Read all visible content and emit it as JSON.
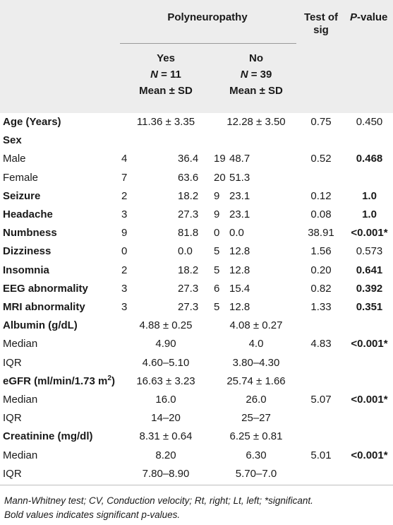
{
  "header": {
    "group_title": "Polyneuropathy",
    "test_of_sig_line1": "Test of",
    "test_of_sig_line2": "sig",
    "p_value_italic": "P",
    "p_value_rest": "-value",
    "yes_label": "Yes",
    "yes_n_italic": "N",
    "yes_n_rest": " = 11",
    "no_label": "No",
    "no_n_italic": "N",
    "no_n_rest": " = 39",
    "mean_sd": "Mean ± SD"
  },
  "rows": [
    {
      "label": "Age (Years)",
      "bold_label": true,
      "yes_combined": "11.36 ± 3.35",
      "no_combined": "12.28 ± 3.50",
      "test": "0.75",
      "p": "0.450",
      "p_bold": false
    },
    {
      "label": "Sex",
      "bold_label": true
    },
    {
      "label": "Male",
      "bold_label": false,
      "yes_n": "4",
      "yes_pct": "36.4",
      "no_n": "19",
      "no_pct": "48.7",
      "test": "0.52",
      "p": "0.468",
      "p_bold": true
    },
    {
      "label": "Female",
      "bold_label": false,
      "yes_n": "7",
      "yes_pct": "63.6",
      "no_n": "20",
      "no_pct": "51.3",
      "test": "",
      "p": "",
      "p_bold": false
    },
    {
      "label": "Seizure",
      "bold_label": true,
      "yes_n": "2",
      "yes_pct": "18.2",
      "no_n": "9",
      "no_pct": "23.1",
      "test": "0.12",
      "p": "1.0",
      "p_bold": true
    },
    {
      "label": "Headache",
      "bold_label": true,
      "yes_n": "3",
      "yes_pct": "27.3",
      "no_n": "9",
      "no_pct": "23.1",
      "test": "0.08",
      "p": "1.0",
      "p_bold": true
    },
    {
      "label": "Numbness",
      "bold_label": true,
      "yes_n": "9",
      "yes_pct": "81.8",
      "no_n": "0",
      "no_pct": "0.0",
      "test": "38.91",
      "p": "<0.001*",
      "p_bold": true
    },
    {
      "label": "Dizziness",
      "bold_label": true,
      "yes_n": "0",
      "yes_pct": "0.0",
      "no_n": "5",
      "no_pct": "12.8",
      "test": "1.56",
      "p": "0.573",
      "p_bold": false
    },
    {
      "label": "Insomnia",
      "bold_label": true,
      "yes_n": "2",
      "yes_pct": "18.2",
      "no_n": "5",
      "no_pct": "12.8",
      "test": "0.20",
      "p": "0.641",
      "p_bold": true
    },
    {
      "label": "EEG abnormality",
      "bold_label": true,
      "yes_n": "3",
      "yes_pct": "27.3",
      "no_n": "6",
      "no_pct": "15.4",
      "test": "0.82",
      "p": "0.392",
      "p_bold": true
    },
    {
      "label": "MRI abnormality",
      "bold_label": true,
      "yes_n": "3",
      "yes_pct": "27.3",
      "no_n": "5",
      "no_pct": "12.8",
      "test": "1.33",
      "p": "0.351",
      "p_bold": true
    },
    {
      "label": "Albumin (g/dL)",
      "bold_label": true,
      "yes_combined": "4.88 ± 0.25",
      "no_combined": "4.08 ± 0.27",
      "test": "",
      "p": "",
      "p_bold": false
    },
    {
      "label": "Median",
      "bold_label": false,
      "yes_combined": "4.90",
      "no_combined": "4.0",
      "test": "4.83",
      "p": "<0.001*",
      "p_bold": true
    },
    {
      "label": "IQR",
      "bold_label": false,
      "yes_combined": "4.60–5.10",
      "no_combined": "3.80–4.30",
      "test": "",
      "p": "",
      "p_bold": false
    },
    {
      "label": "eGFR (ml/min/1.73 m",
      "label_sup": "2",
      "label_tail": ")",
      "bold_label": true,
      "yes_combined": "16.63 ± 3.23",
      "no_combined": "25.74 ± 1.66",
      "test": "",
      "p": "",
      "p_bold": false
    },
    {
      "label": "Median",
      "bold_label": false,
      "yes_combined": "16.0",
      "no_combined": "26.0",
      "test": "5.07",
      "p": "<0.001*",
      "p_bold": true
    },
    {
      "label": "IQR",
      "bold_label": false,
      "yes_combined": "14–20",
      "no_combined": "25–27",
      "test": "",
      "p": "",
      "p_bold": false
    },
    {
      "label": "Creatinine (mg/dl)",
      "bold_label": true,
      "yes_combined": "8.31 ± 0.64",
      "no_combined": "6.25 ± 0.81",
      "test": "",
      "p": "",
      "p_bold": false
    },
    {
      "label": "Median",
      "bold_label": false,
      "yes_combined": "8.20",
      "no_combined": "6.30",
      "test": "5.01",
      "p": "<0.001*",
      "p_bold": true
    },
    {
      "label": "IQR",
      "bold_label": false,
      "yes_combined": "7.80–8.90",
      "no_combined": "5.70–7.0",
      "test": "",
      "p": "",
      "p_bold": false
    }
  ],
  "footnote": {
    "line1": "Mann-Whitney test; CV, Conduction velocity; Rt, right; Lt, left; *significant.",
    "line2": "Bold values indicates significant p-values."
  }
}
